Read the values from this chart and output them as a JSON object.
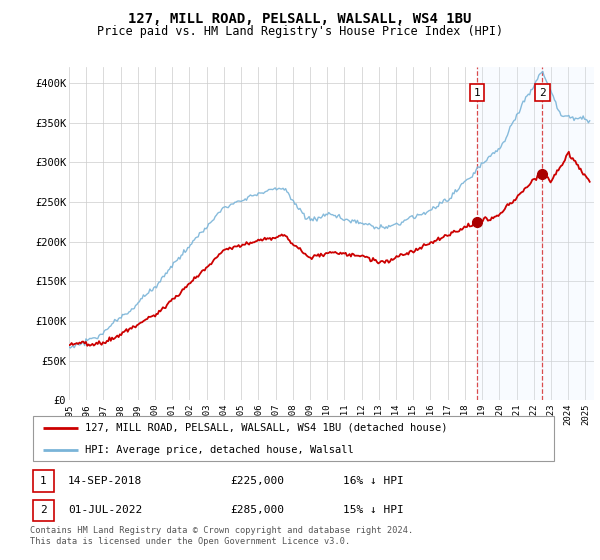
{
  "title": "127, MILL ROAD, PELSALL, WALSALL, WS4 1BU",
  "subtitle": "Price paid vs. HM Land Registry's House Price Index (HPI)",
  "legend_entries": [
    "127, MILL ROAD, PELSALL, WALSALL, WS4 1BU (detached house)",
    "HPI: Average price, detached house, Walsall"
  ],
  "table": [
    {
      "num": "1",
      "date": "14-SEP-2018",
      "price": "£225,000",
      "hpi": "16% ↓ HPI"
    },
    {
      "num": "2",
      "date": "01-JUL-2022",
      "price": "£285,000",
      "hpi": "15% ↓ HPI"
    }
  ],
  "footnote": "Contains HM Land Registry data © Crown copyright and database right 2024.\nThis data is licensed under the Open Government Licence v3.0.",
  "sale1_date": 2018.71,
  "sale1_price": 225000,
  "sale2_date": 2022.5,
  "sale2_price": 285000,
  "hpi_color": "#7ab4d8",
  "price_color": "#cc0000",
  "vline_color": "#cc0000",
  "shade_color": "#ddeeff",
  "ylim": [
    0,
    420000
  ],
  "xlim_start": 1995.0,
  "xlim_end": 2025.5,
  "grid_color": "#cccccc",
  "yticks": [
    0,
    50000,
    100000,
    150000,
    200000,
    250000,
    300000,
    350000,
    400000
  ],
  "ylabels": [
    "£0",
    "£50K",
    "£100K",
    "£150K",
    "£200K",
    "£250K",
    "£300K",
    "£350K",
    "£400K"
  ]
}
